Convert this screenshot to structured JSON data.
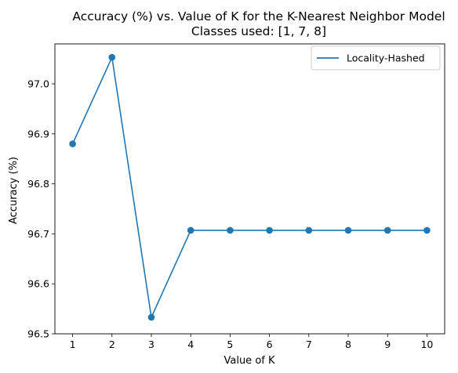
{
  "chart_data": {
    "type": "line",
    "title": "Accuracy (%) vs. Value of K for the K-Nearest Neighbor Model",
    "subtitle": "Classes used: [1, 7, 8]",
    "xlabel": "Value of K",
    "ylabel": "Accuracy (%)",
    "x": [
      1,
      2,
      3,
      4,
      5,
      6,
      7,
      8,
      9,
      10
    ],
    "series": [
      {
        "name": "Locality-Hashed",
        "color": "#1f77b4",
        "values": [
          96.88,
          97.053,
          96.533,
          96.707,
          96.707,
          96.707,
          96.707,
          96.707,
          96.707,
          96.707
        ]
      }
    ],
    "xlim": [
      0.55,
      10.45
    ],
    "ylim": [
      96.5,
      97.08
    ],
    "xticks": [
      "1",
      "2",
      "3",
      "4",
      "5",
      "6",
      "7",
      "8",
      "9",
      "10"
    ],
    "yticks": [
      "96.5",
      "96.6",
      "96.7",
      "96.8",
      "96.9",
      "97.0"
    ],
    "ytick_values": [
      96.5,
      96.6,
      96.7,
      96.8,
      96.9,
      97.0
    ],
    "grid": false,
    "legend_position": "top-right"
  }
}
